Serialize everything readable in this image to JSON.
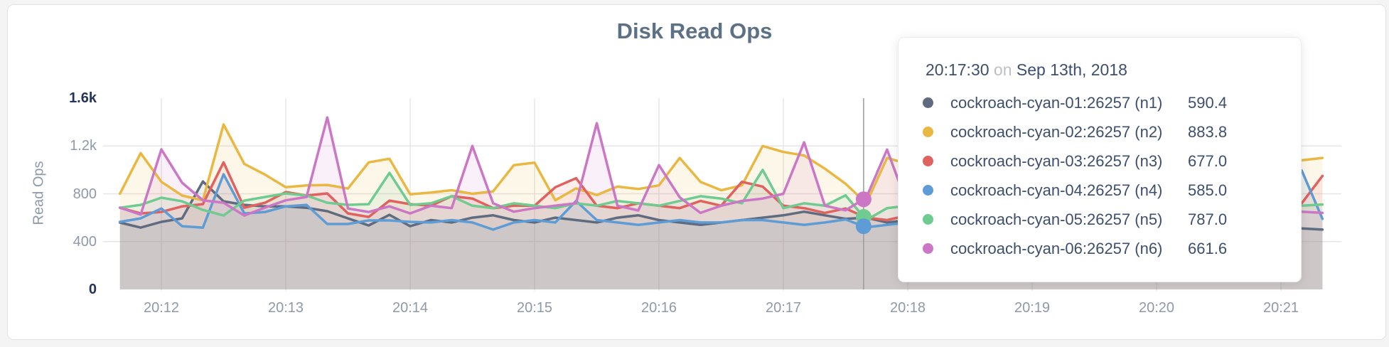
{
  "page": {
    "background": "#f4f4f4"
  },
  "tooltip": {
    "time": "20:17:30",
    "connector": "on",
    "date": "Sep 13th, 2018",
    "rows": [
      {
        "label": "cockroach-cyan-01:26257 (n1)",
        "value": "590.4",
        "color": "#5f6c80"
      },
      {
        "label": "cockroach-cyan-02:26257 (n2)",
        "value": "883.8",
        "color": "#e9b843"
      },
      {
        "label": "cockroach-cyan-03:26257 (n3)",
        "value": "677.0",
        "color": "#e0625e"
      },
      {
        "label": "cockroach-cyan-04:26257 (n4)",
        "value": "585.0",
        "color": "#5e9cd6"
      },
      {
        "label": "cockroach-cyan-05:26257 (n5)",
        "value": "787.0",
        "color": "#6fcb90"
      },
      {
        "label": "cockroach-cyan-06:26257 (n6)",
        "value": "661.6",
        "color": "#cb77c5"
      }
    ]
  },
  "chart_data": {
    "type": "area",
    "title": "Disk Read Ops",
    "ylabel": "Read Ops",
    "ylim": [
      0,
      1600
    ],
    "x_start": "20:11:40",
    "x_step_seconds": 10,
    "grid_color": "#e6e6e6",
    "area_opacity": 0.11,
    "y_ticks": [
      {
        "value": 1600,
        "label": "1.6k",
        "emphasis": true,
        "grid": false
      },
      {
        "value": 1200,
        "label": "1.2k",
        "emphasis": false,
        "grid": true
      },
      {
        "value": 800,
        "label": "800",
        "emphasis": false,
        "grid": true
      },
      {
        "value": 400,
        "label": "400",
        "emphasis": false,
        "grid": true
      },
      {
        "value": 0,
        "label": "0",
        "emphasis": true,
        "grid": false
      }
    ],
    "x_ticks": [
      {
        "index": 2,
        "label": "20:12"
      },
      {
        "index": 8,
        "label": "20:13"
      },
      {
        "index": 14,
        "label": "20:14"
      },
      {
        "index": 20,
        "label": "20:15"
      },
      {
        "index": 26,
        "label": "20:16"
      },
      {
        "index": 32,
        "label": "20:17"
      },
      {
        "index": 38,
        "label": "20:18"
      },
      {
        "index": 44,
        "label": "20:19"
      },
      {
        "index": 50,
        "label": "20:20"
      },
      {
        "index": 56,
        "label": "20:21"
      }
    ],
    "series": [
      {
        "id": "n1",
        "name": "cockroach-cyan-01:26257 (n1)",
        "color": "#5f6c80",
        "values": [
          559,
          517,
          565,
          594,
          903,
          737,
          707,
          695,
          695,
          683,
          654,
          594,
          535,
          624,
          529,
          580,
          560,
          600,
          620,
          580,
          560,
          600,
          580,
          560,
          600,
          620,
          580,
          560,
          540,
          560,
          580,
          600,
          620,
          650,
          620,
          590.4,
          600,
          560,
          580,
          540,
          560,
          580,
          600,
          560,
          540,
          560,
          580,
          550,
          570,
          590,
          560,
          540,
          560,
          580,
          550,
          530,
          520,
          510,
          500
        ]
      },
      {
        "id": "n2",
        "name": "cockroach-cyan-02:26257 (n2)",
        "color": "#e9b843",
        "values": [
          800,
          1140,
          900,
          785,
          745,
          1380,
          1050,
          960,
          855,
          870,
          874,
          844,
          1063,
          1093,
          795,
          810,
          830,
          800,
          820,
          1040,
          1060,
          745,
          845,
          790,
          860,
          840,
          870,
          1100,
          900,
          830,
          870,
          1200,
          1150,
          1120,
          1010,
          883.8,
          720,
          1100,
          1050,
          800,
          850,
          900,
          820,
          870,
          800,
          830,
          900,
          850,
          880,
          820,
          860,
          900,
          840,
          880,
          830,
          870,
          950,
          1080,
          1100
        ]
      },
      {
        "id": "n3",
        "name": "cockroach-cyan-03:26257 (n3)",
        "color": "#e0625e",
        "values": [
          683,
          636,
          648,
          695,
          713,
          1063,
          683,
          725,
          814,
          785,
          803,
          636,
          606,
          743,
          713,
          700,
          780,
          760,
          680,
          700,
          700,
          855,
          930,
          700,
          680,
          720,
          700,
          680,
          740,
          700,
          900,
          860,
          700,
          680,
          640,
          677,
          600,
          580,
          620,
          650,
          700,
          680,
          720,
          700,
          660,
          700,
          720,
          680,
          700,
          720,
          700,
          680,
          700,
          720,
          700,
          680,
          700,
          720,
          950
        ]
      },
      {
        "id": "n4",
        "name": "cockroach-cyan-04:26257 (n4)",
        "color": "#5e9cd6",
        "values": [
          565,
          594,
          677,
          529,
          517,
          963,
          636,
          648,
          695,
          707,
          547,
          547,
          577,
          577,
          565,
          560,
          580,
          560,
          500,
          560,
          580,
          560,
          740,
          580,
          560,
          540,
          560,
          580,
          560,
          560,
          580,
          580,
          560,
          540,
          560,
          585,
          520,
          540,
          560,
          580,
          560,
          540,
          560,
          580,
          560,
          540,
          560,
          580,
          560,
          540,
          560,
          580,
          560,
          540,
          560,
          580,
          620,
          995,
          590
        ]
      },
      {
        "id": "n5",
        "name": "cockroach-cyan-05:26257 (n5)",
        "color": "#6fcb90",
        "values": [
          683,
          707,
          767,
          737,
          665,
          618,
          743,
          773,
          803,
          785,
          725,
          707,
          713,
          975,
          707,
          720,
          780,
          700,
          680,
          720,
          700,
          680,
          720,
          700,
          740,
          720,
          700,
          740,
          780,
          760,
          720,
          1000,
          680,
          720,
          700,
          787,
          580,
          680,
          700,
          720,
          700,
          680,
          700,
          720,
          700,
          680,
          700,
          720,
          700,
          680,
          700,
          720,
          700,
          680,
          700,
          720,
          700,
          700,
          710
        ]
      },
      {
        "id": "n6",
        "name": "cockroach-cyan-06:26257 (n6)",
        "color": "#cb77c5",
        "values": [
          684,
          625,
          1171,
          892,
          745,
          725,
          618,
          684,
          745,
          773,
          1438,
          677,
          648,
          695,
          636,
          700,
          680,
          1200,
          720,
          650,
          680,
          700,
          720,
          1390,
          700,
          660,
          1040,
          770,
          640,
          700,
          740,
          760,
          800,
          1230,
          700,
          661.6,
          768,
          1170,
          700,
          680,
          700,
          720,
          700,
          680,
          700,
          720,
          700,
          680,
          700,
          720,
          700,
          680,
          700,
          720,
          700,
          680,
          700,
          650,
          640
        ]
      }
    ],
    "hover": {
      "time": "20:17:30",
      "point_index": 35,
      "guideline_index": 35.87,
      "guideline_color": "#9b9b9b",
      "dot_series": [
        "n6",
        "n5",
        "n4"
      ],
      "dot_radius": 11
    }
  }
}
